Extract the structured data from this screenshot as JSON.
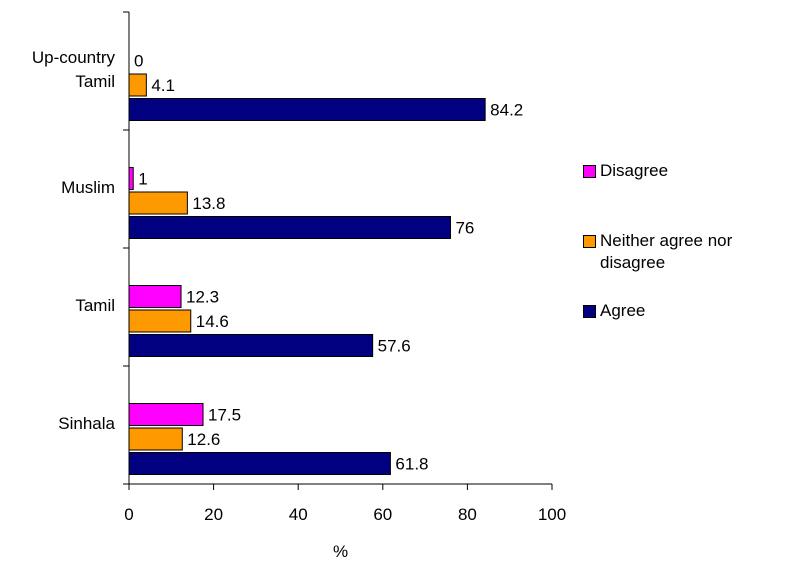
{
  "chart_data": {
    "type": "bar",
    "orientation": "horizontal",
    "categories": [
      "Up-country Tamil",
      "Muslim",
      "Tamil",
      "Sinhala"
    ],
    "category_label_lines": [
      [
        "Up-country",
        "Tamil"
      ],
      [
        "Muslim"
      ],
      [
        "Tamil"
      ],
      [
        "Sinhala"
      ]
    ],
    "series": [
      {
        "name": "Disagree",
        "color": "#ff00ff",
        "values": [
          0,
          1,
          12.3,
          17.5
        ]
      },
      {
        "name": "Neither agree nor disagree",
        "color": "#ff9900",
        "values": [
          4.1,
          13.8,
          14.6,
          12.6
        ]
      },
      {
        "name": "Agree",
        "color": "#000080",
        "values": [
          84.2,
          76,
          57.6,
          61.8
        ]
      }
    ],
    "legend_items": [
      {
        "name": "Disagree",
        "lines": [
          "Disagree"
        ],
        "color": "#ff00ff"
      },
      {
        "name": "Neither agree nor disagree",
        "lines": [
          "Neither agree nor",
          "disagree"
        ],
        "color": "#ff9900"
      },
      {
        "name": "Agree",
        "lines": [
          "Agree"
        ],
        "color": "#000080"
      }
    ],
    "xlabel": "%",
    "ylabel": "",
    "xlim": [
      0,
      100
    ],
    "xticks": [
      0,
      20,
      40,
      60,
      80,
      100
    ],
    "grid": false,
    "legend_position": "right"
  }
}
